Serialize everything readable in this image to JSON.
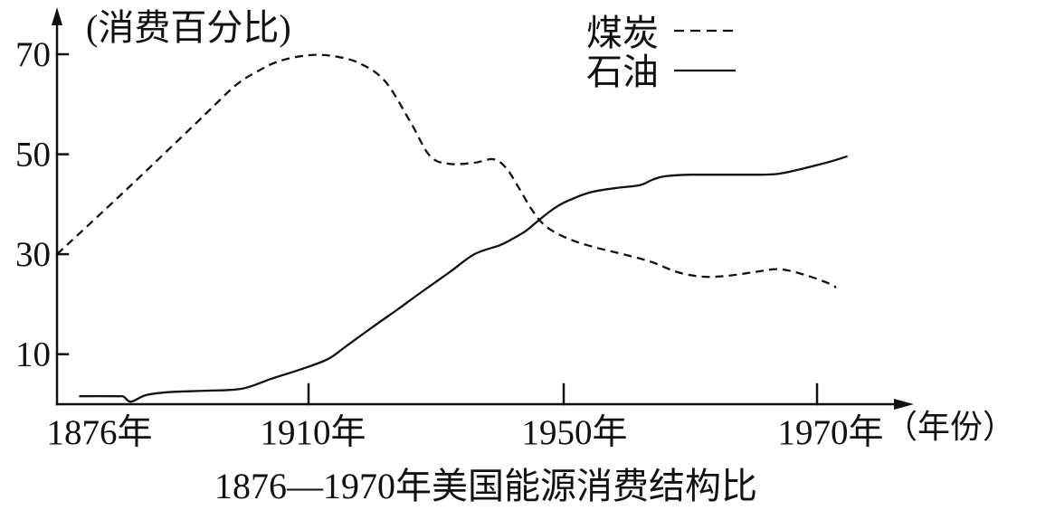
{
  "chart_data": {
    "type": "line",
    "title": "1876—1970年美国能源消费结构比",
    "ylabel": "(消费百分比)",
    "xlabel": "（年份）",
    "x_ticks": [
      1876,
      1910,
      1950,
      1970
    ],
    "x_tick_labels": [
      "1876年",
      "1910年",
      "1950年",
      "1970年"
    ],
    "y_ticks": [
      10,
      30,
      50,
      70
    ],
    "xlim": [
      1876,
      1977
    ],
    "ylim": [
      0,
      78
    ],
    "grid": false,
    "legend": {
      "position": "top-right"
    },
    "series": [
      {
        "name": "煤炭",
        "line_style": "dashed",
        "color": "#111111",
        "points": [
          [
            1876,
            30.0
          ],
          [
            1885,
            42.4
          ],
          [
            1895,
            56.5
          ],
          [
            1900,
            63.6
          ],
          [
            1903,
            66.5
          ],
          [
            1906,
            68.6
          ],
          [
            1910,
            69.8
          ],
          [
            1914,
            69.6
          ],
          [
            1918,
            68.2
          ],
          [
            1922,
            64.6
          ],
          [
            1926,
            56.4
          ],
          [
            1929,
            49.7
          ],
          [
            1932,
            48.1
          ],
          [
            1936,
            48.3
          ],
          [
            1939,
            49.0
          ],
          [
            1941,
            47.2
          ],
          [
            1943,
            43.2
          ],
          [
            1945,
            38.9
          ],
          [
            1947,
            35.8
          ],
          [
            1950,
            33.5
          ],
          [
            1952,
            31.7
          ],
          [
            1955,
            29.8
          ],
          [
            1957,
            28.4
          ],
          [
            1959,
            26.4
          ],
          [
            1961,
            25.5
          ],
          [
            1963,
            25.7
          ],
          [
            1965,
            26.4
          ],
          [
            1967,
            27.0
          ],
          [
            1969,
            25.9
          ],
          [
            1971,
            24.1
          ],
          [
            1971.5,
            23.3
          ]
        ]
      },
      {
        "name": "石油",
        "line_style": "solid",
        "color": "#111111",
        "points": [
          [
            1879,
            1.6
          ],
          [
            1884,
            1.6
          ],
          [
            1885,
            1.5
          ],
          [
            1886,
            0.5
          ],
          [
            1888,
            1.8
          ],
          [
            1891,
            2.4
          ],
          [
            1896,
            2.7
          ],
          [
            1901,
            3.1
          ],
          [
            1905,
            5.1
          ],
          [
            1909,
            7.0
          ],
          [
            1913,
            9.0
          ],
          [
            1916,
            11.7
          ],
          [
            1920,
            15.4
          ],
          [
            1924,
            19.0
          ],
          [
            1928,
            22.7
          ],
          [
            1932,
            26.3
          ],
          [
            1936,
            30.0
          ],
          [
            1940,
            31.8
          ],
          [
            1942,
            33.1
          ],
          [
            1944,
            34.6
          ],
          [
            1946,
            36.7
          ],
          [
            1948,
            38.7
          ],
          [
            1950,
            40.3
          ],
          [
            1952,
            42.3
          ],
          [
            1954,
            43.2
          ],
          [
            1956,
            43.8
          ],
          [
            1957,
            44.9
          ],
          [
            1958,
            45.6
          ],
          [
            1960,
            45.9
          ],
          [
            1965,
            45.9
          ],
          [
            1967,
            46.1
          ],
          [
            1969,
            47.2
          ],
          [
            1971,
            48.5
          ],
          [
            1972.4,
            49.6
          ]
        ]
      }
    ]
  }
}
